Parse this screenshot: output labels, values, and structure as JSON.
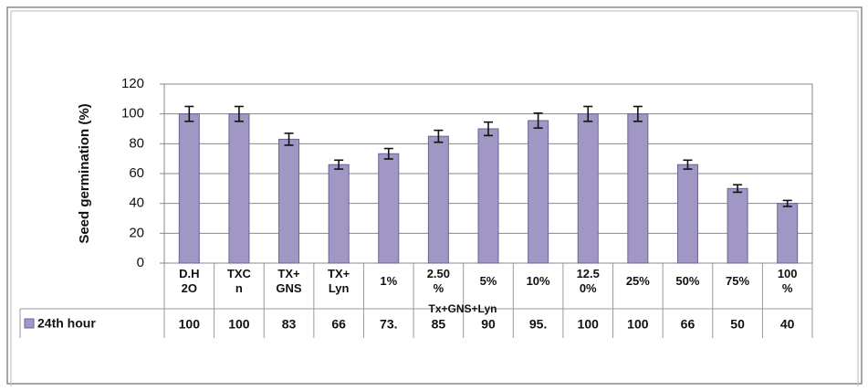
{
  "chart_data": {
    "type": "bar",
    "y_label": "Seed germination (%)",
    "categories": [
      "D.H 2O",
      "TXC n",
      "TX+ GNS",
      "TX+ Lyn",
      "1%",
      "2.50 %",
      "5%",
      "10%",
      "12.5 0%",
      "25%",
      "50%",
      "75%",
      "100 %"
    ],
    "group_label": "Tx+GNS+Lyn",
    "series": [
      {
        "name": "24th hour",
        "color": "#a097c4",
        "values": [
          100,
          100,
          83,
          66,
          73.3,
          85,
          90,
          95.5,
          100,
          100,
          66,
          50,
          40
        ],
        "value_labels": [
          "100",
          "100",
          "83",
          "66",
          "73.",
          "85",
          "90",
          "95.",
          "100",
          "100",
          "66",
          "50",
          "40"
        ],
        "errors": [
          5,
          5,
          4,
          3,
          3.5,
          4,
          4.5,
          5,
          5,
          5,
          3,
          2.5,
          2
        ]
      }
    ],
    "ylim": [
      0,
      120
    ],
    "yticks": [
      0,
      20,
      40,
      60,
      80,
      100,
      120
    ],
    "grid": true
  }
}
